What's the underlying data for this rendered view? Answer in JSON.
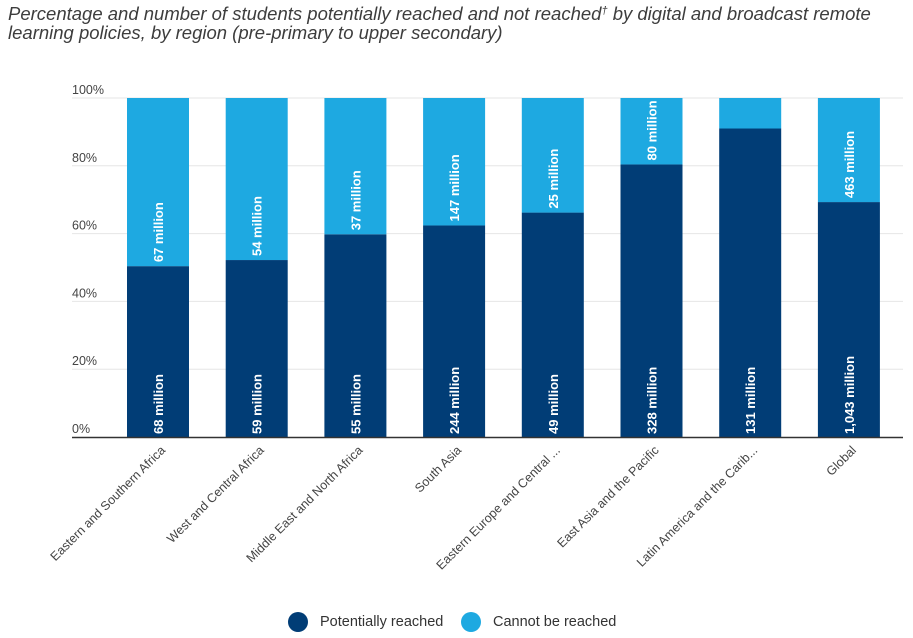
{
  "title": {
    "text": "Percentage and number of students potentially reached and not reached",
    "mark": "†",
    "rest": " by digital and broadcast remote learning policies, by region (pre-primary to upper secondary)"
  },
  "colors": {
    "reached": "#013d76",
    "not_reached": "#1ea9e1",
    "grid": "#e6e6e6",
    "axis": "#333333"
  },
  "legend": {
    "reached": "Potentially reached",
    "not_reached": "Cannot be reached"
  },
  "chart_data": {
    "type": "bar",
    "stacked": true,
    "title": "Percentage and number of students potentially reached and not reached† by digital and broadcast remote learning policies, by region (pre-primary to upper secondary)",
    "categories": [
      "Eastern and Southern Africa",
      "West and Central Africa",
      "Middle East and North Africa",
      "South Asia",
      "Eastern Europe and Central ...",
      "East Asia and the Pacific",
      "Latin America and the Carib...",
      "Global"
    ],
    "series": [
      {
        "name": "Potentially reached",
        "values": [
          50.4,
          52.2,
          59.8,
          62.4,
          66.2,
          80.4,
          91.0,
          69.3
        ],
        "labels": [
          "68 million",
          "59 million",
          "55 million",
          "244 million",
          "49 million",
          "328 million",
          "131 million",
          "1,043 million"
        ]
      },
      {
        "name": "Cannot be reached",
        "values": [
          49.6,
          47.8,
          40.2,
          37.6,
          33.8,
          19.6,
          9.0,
          30.7
        ],
        "labels": [
          "67 million",
          "54 million",
          "37 million",
          "147 million",
          "25 million",
          "80 million",
          "",
          "463 million"
        ]
      }
    ],
    "yticks": [
      "0%",
      "20%",
      "40%",
      "60%",
      "80%",
      "100%"
    ],
    "ylim": [
      0,
      100
    ],
    "grid": true,
    "legend_position": "bottom-center"
  }
}
